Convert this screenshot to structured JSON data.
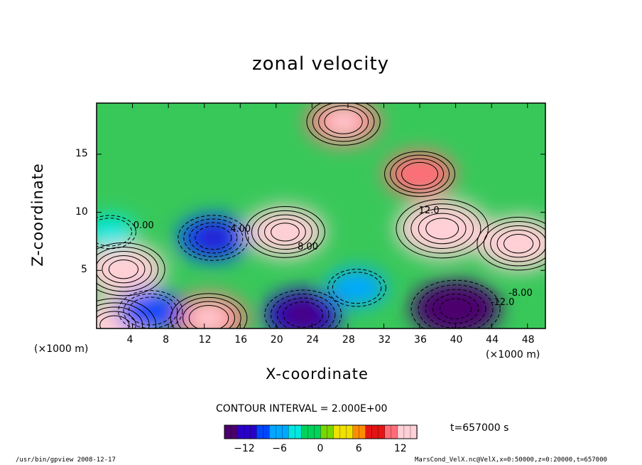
{
  "chart_data": {
    "type": "heatmap",
    "title": "zonal velocity",
    "xlabel": "X-coordinate",
    "ylabel": "Z-coordinate",
    "x_unit": "(×1000 m)",
    "y_unit": "(×1000 m)",
    "xlim": [
      0,
      50
    ],
    "ylim": [
      0,
      19.4
    ],
    "x_ticks": [
      4,
      8,
      12,
      16,
      20,
      24,
      28,
      32,
      36,
      40,
      44,
      48
    ],
    "y_ticks": [
      5,
      10,
      15
    ],
    "contour_interval": "CONTOUR INTERVAL = 2.000E+00",
    "contour_labels": [
      "0.00",
      "4.00",
      "8.00",
      "12.0",
      "-8.00",
      "-12.0"
    ],
    "colorbar": {
      "min": -15,
      "max": 15,
      "ticks": [
        -12,
        -6,
        0,
        6,
        12
      ],
      "colors": [
        "#4b006e",
        "#2a00c8",
        "#0046ff",
        "#00a8ff",
        "#00e8e0",
        "#00d25a",
        "#7ad600",
        "#f0e000",
        "#ff8c00",
        "#e61414",
        "#ff6e78",
        "#ffd0d6"
      ]
    },
    "time_label": "t=657000 s",
    "features": [
      {
        "x": 13.0,
        "z": 7.8,
        "value": -10
      },
      {
        "x": 21.0,
        "z": 8.3,
        "value": 13
      },
      {
        "x": 38.5,
        "z": 8.6,
        "value": 17
      },
      {
        "x": 47.0,
        "z": 7.3,
        "value": 14
      },
      {
        "x": 12.5,
        "z": 0.9,
        "value": 12
      },
      {
        "x": 3.0,
        "z": 5.1,
        "value": 14
      },
      {
        "x": 2.0,
        "z": 0.3,
        "value": 14
      },
      {
        "x": 40.0,
        "z": 1.7,
        "value": -16
      },
      {
        "x": 23.0,
        "z": 1.2,
        "value": -12
      },
      {
        "x": 29.0,
        "z": 3.5,
        "value": -6
      },
      {
        "x": 27.5,
        "z": 17.8,
        "value": 11
      },
      {
        "x": 36.0,
        "z": 13.3,
        "value": 10
      },
      {
        "x": 1.5,
        "z": 8.3,
        "value": -4
      },
      {
        "x": 6.0,
        "z": 1.5,
        "value": -8
      }
    ]
  },
  "footer": {
    "program": "/usr/bin/gpview   2008-12-17",
    "source": "MarsCond_VelX.nc@VelX,x=0:50000,z=0:20000,t=657000"
  }
}
